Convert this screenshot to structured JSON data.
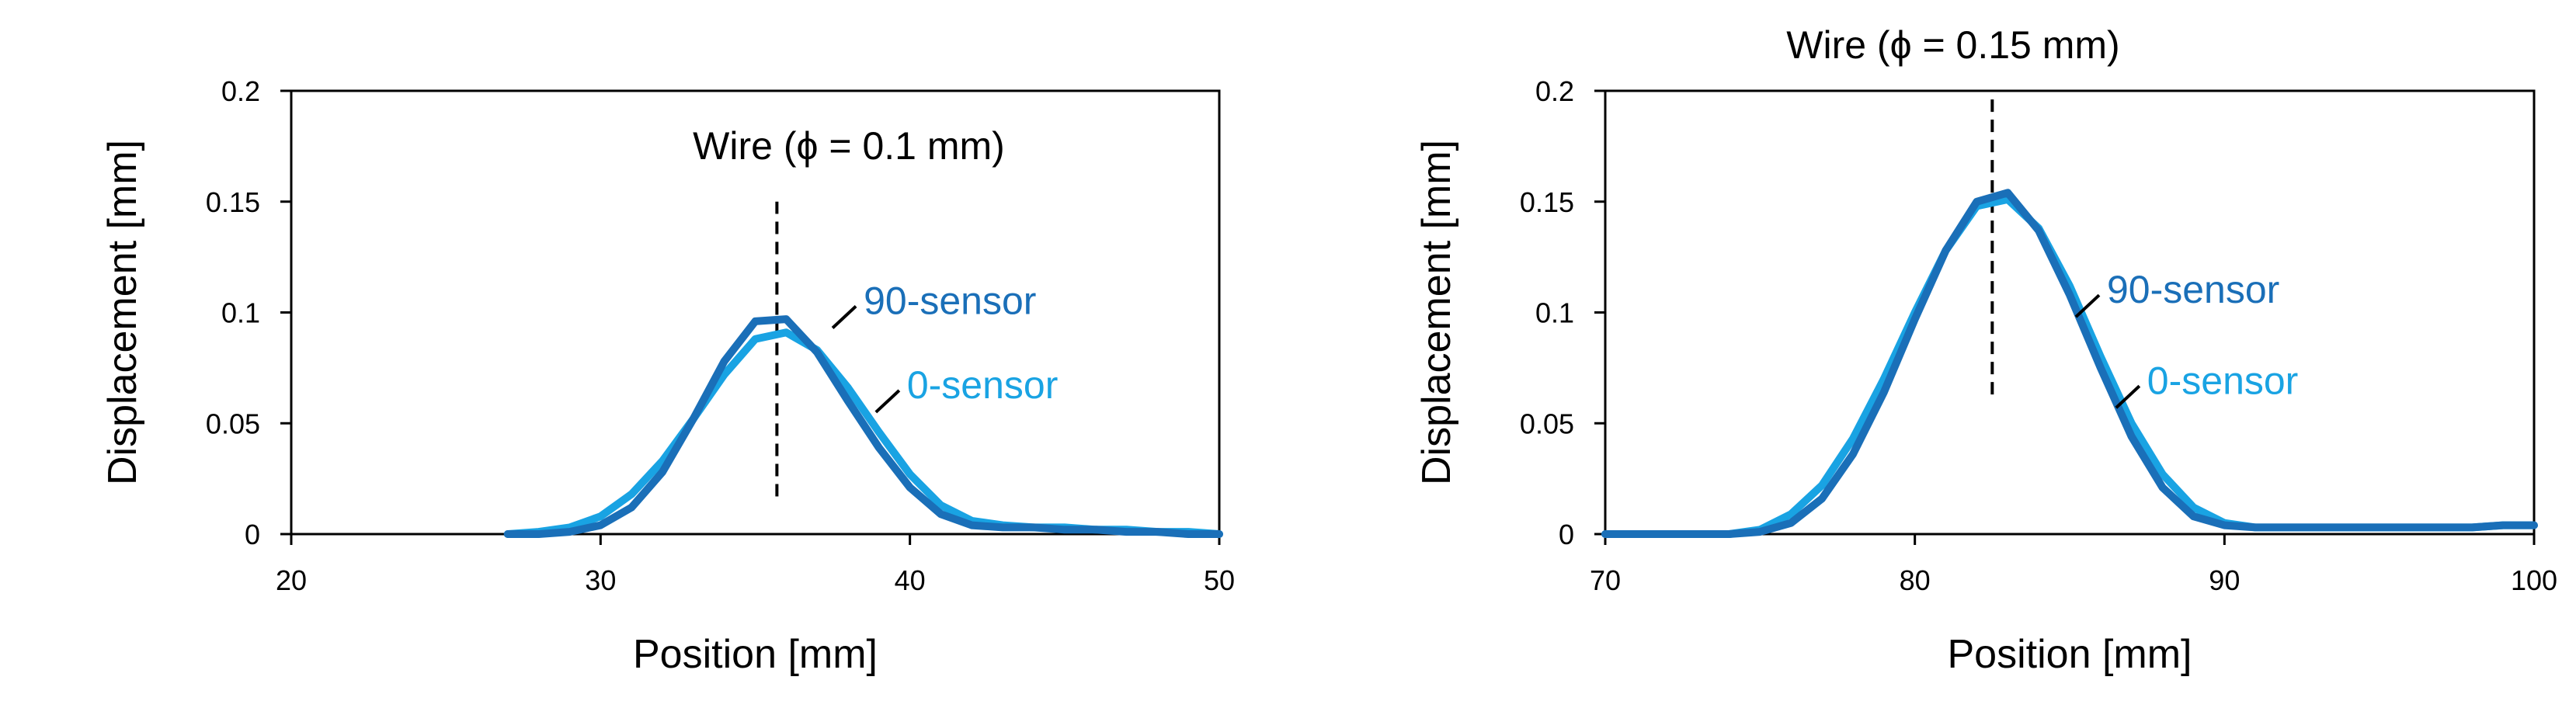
{
  "colors": {
    "sensor_90": "#1a6fb8",
    "sensor_0": "#19a3e3",
    "axis": "#000000",
    "wire_marker": "#000000"
  },
  "chart_data": [
    {
      "type": "line",
      "title": "",
      "annotation": "Wire (ϕ = 0.1 mm)",
      "xlabel": "Position [mm]",
      "ylabel": "Displacement [mm]",
      "xlim": [
        20,
        50
      ],
      "ylim": [
        0,
        0.2
      ],
      "xticks": [
        "20",
        "30",
        "40",
        "50"
      ],
      "yticks": [
        "0",
        "0.05",
        "0.1",
        "0.15",
        "0.2"
      ],
      "grid": false,
      "wire_position": 35.7,
      "wire_marker_range": [
        0.017,
        0.15
      ],
      "series": [
        {
          "name": "90-sensor",
          "color": "#1a6fb8",
          "x": [
            27,
            28,
            29,
            30,
            31,
            32,
            33,
            34,
            35,
            36,
            37,
            38,
            39,
            40,
            41,
            42,
            43,
            44,
            45,
            46,
            47,
            48,
            49,
            50
          ],
          "y": [
            0,
            0,
            0.001,
            0.004,
            0.012,
            0.028,
            0.052,
            0.078,
            0.096,
            0.097,
            0.082,
            0.06,
            0.039,
            0.021,
            0.009,
            0.004,
            0.003,
            0.003,
            0.002,
            0.002,
            0.001,
            0.001,
            0,
            0
          ],
          "label_anchor": [
            37.5,
            0.093
          ]
        },
        {
          "name": "0-sensor",
          "color": "#19a3e3",
          "x": [
            27,
            28,
            29,
            30,
            31,
            32,
            33,
            34,
            35,
            36,
            37,
            38,
            39,
            40,
            41,
            42,
            43,
            44,
            45,
            46,
            47,
            48,
            49,
            50
          ],
          "y": [
            0,
            0.001,
            0.003,
            0.008,
            0.018,
            0.033,
            0.052,
            0.072,
            0.088,
            0.091,
            0.083,
            0.066,
            0.046,
            0.027,
            0.013,
            0.006,
            0.004,
            0.003,
            0.003,
            0.002,
            0.002,
            0.001,
            0.001,
            0
          ],
          "label_anchor": [
            38.9,
            0.055
          ]
        }
      ]
    },
    {
      "type": "line",
      "title": "Wire (ϕ = 0.15 mm)",
      "xlabel": "Position [mm]",
      "ylabel": "Displacement [mm]",
      "xlim": [
        70,
        100
      ],
      "ylim": [
        0,
        0.2
      ],
      "xticks": [
        "70",
        "80",
        "90",
        "100"
      ],
      "yticks": [
        "0",
        "0.05",
        "0.1",
        "0.15",
        "0.2"
      ],
      "grid": false,
      "wire_position": 82.5,
      "wire_marker_range": [
        0.063,
        0.198
      ],
      "series": [
        {
          "name": "90-sensor",
          "color": "#1a6fb8",
          "x": [
            70,
            71,
            72,
            73,
            74,
            75,
            76,
            77,
            78,
            79,
            80,
            81,
            82,
            83,
            84,
            85,
            86,
            87,
            88,
            89,
            90,
            91,
            92,
            93,
            94,
            95,
            96,
            97,
            98,
            99,
            100
          ],
          "y": [
            0,
            0,
            0,
            0,
            0,
            0.001,
            0.005,
            0.016,
            0.036,
            0.064,
            0.097,
            0.128,
            0.15,
            0.154,
            0.137,
            0.108,
            0.075,
            0.044,
            0.021,
            0.008,
            0.004,
            0.003,
            0.003,
            0.003,
            0.003,
            0.003,
            0.003,
            0.003,
            0.003,
            0.004,
            0.004
          ],
          "label_anchor": [
            85.2,
            0.098
          ]
        },
        {
          "name": "0-sensor",
          "color": "#19a3e3",
          "x": [
            70,
            71,
            72,
            73,
            74,
            75,
            76,
            77,
            78,
            79,
            80,
            81,
            82,
            83,
            84,
            85,
            86,
            87,
            88,
            89,
            90,
            91,
            92,
            93,
            94,
            95,
            96,
            97,
            98,
            99,
            100
          ],
          "y": [
            0,
            0,
            0,
            0,
            0,
            0.002,
            0.009,
            0.022,
            0.043,
            0.07,
            0.1,
            0.128,
            0.148,
            0.151,
            0.138,
            0.112,
            0.08,
            0.05,
            0.027,
            0.012,
            0.005,
            0.003,
            0.003,
            0.003,
            0.003,
            0.003,
            0.003,
            0.003,
            0.003,
            0.004,
            0.004
          ],
          "label_anchor": [
            86.5,
            0.057
          ]
        }
      ]
    }
  ]
}
